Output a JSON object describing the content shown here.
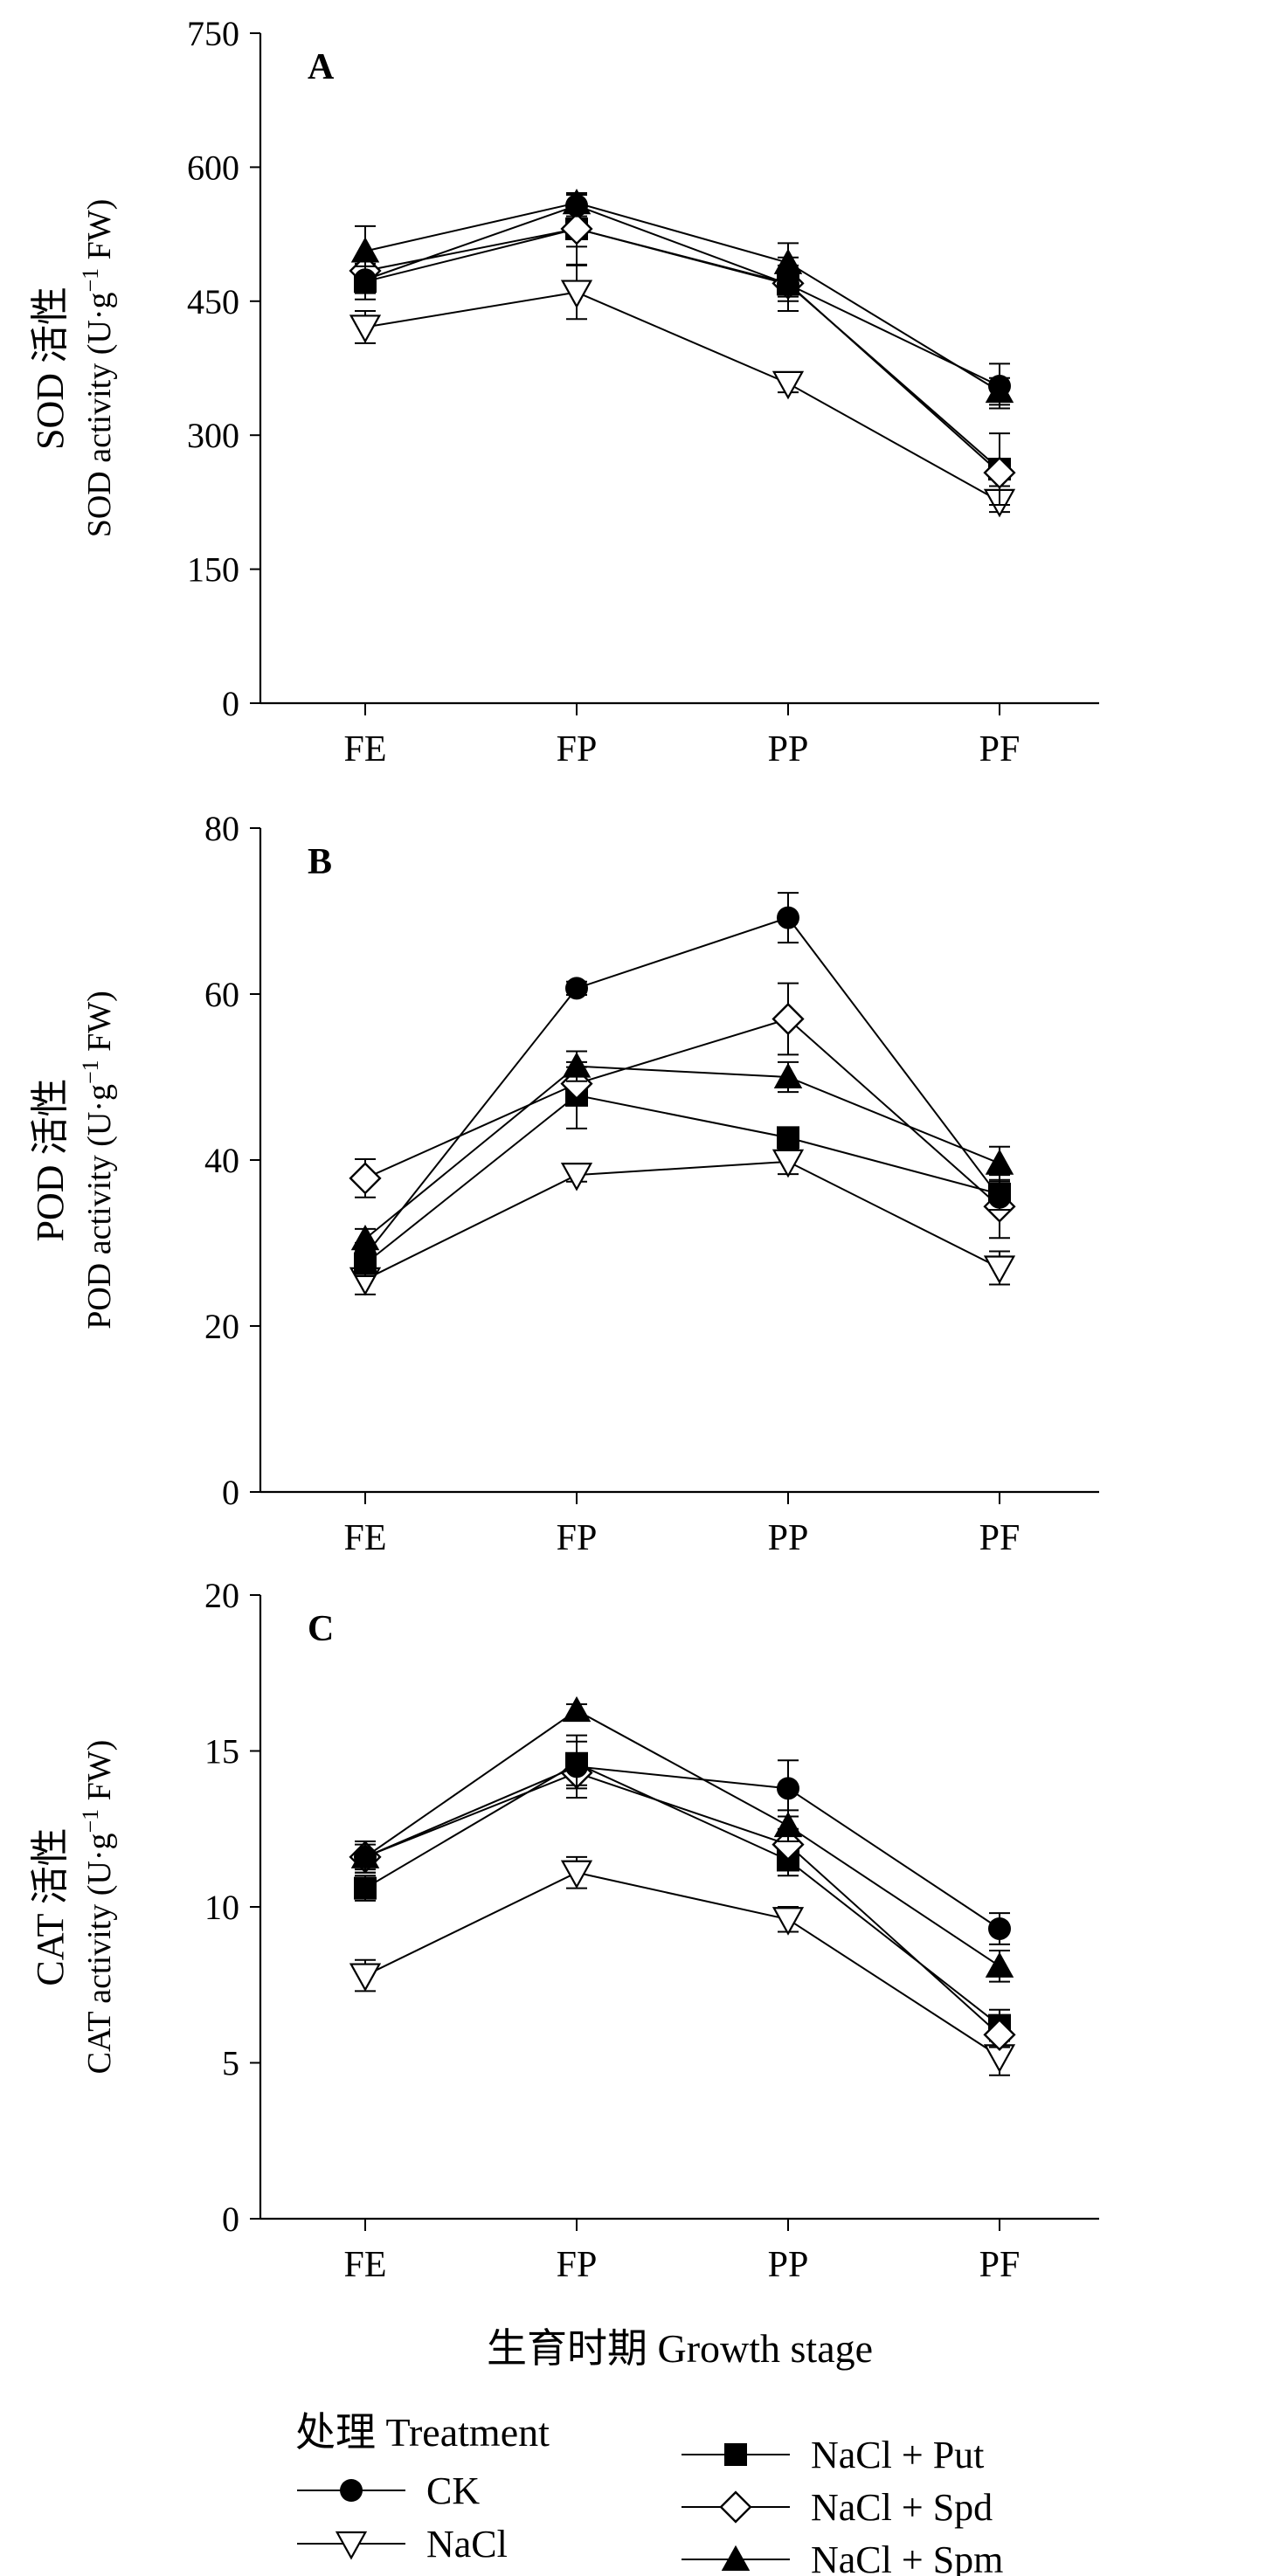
{
  "chart_data": [
    {
      "type": "line",
      "panel_label": "A",
      "ylabel_cn": "SOD 活性",
      "ylabel_en_pre": "SOD activity (U·g",
      "ylabel_en_sup": "−1",
      "ylabel_en_post": " FW)",
      "categories": [
        "FE",
        "FP",
        "PP",
        "PF"
      ],
      "ylim": [
        0,
        750
      ],
      "yticks": [
        0,
        150,
        300,
        450,
        600,
        750
      ],
      "series": [
        {
          "name": "CK",
          "values": [
            474,
            557,
            469,
            355
          ],
          "errors": [
            15,
            12,
            14,
            25
          ]
        },
        {
          "name": "NaCl",
          "values": [
            421,
            460,
            358,
            226
          ],
          "errors": [
            18,
            30,
            10,
            12
          ]
        },
        {
          "name": "NaCl + Put",
          "values": [
            472,
            531,
            469,
            262
          ],
          "errors": [
            20,
            40,
            30,
            40
          ]
        },
        {
          "name": "NaCl + Spd",
          "values": [
            484,
            531,
            470,
            258
          ],
          "errors": [
            15,
            20,
            20,
            15
          ]
        },
        {
          "name": "NaCl + Spm",
          "values": [
            506,
            560,
            493,
            349
          ],
          "errors": [
            28,
            10,
            22,
            15
          ]
        }
      ]
    },
    {
      "type": "line",
      "panel_label": "B",
      "ylabel_cn": "POD 活性",
      "ylabel_en_pre": "POD activity (U·g",
      "ylabel_en_sup": "−1",
      "ylabel_en_post": " FW)",
      "categories": [
        "FE",
        "FP",
        "PP",
        "PF"
      ],
      "ylim": [
        0,
        80
      ],
      "yticks": [
        0,
        20,
        40,
        60,
        80
      ],
      "series": [
        {
          "name": "CK",
          "values": [
            28.5,
            60.7,
            69.2,
            35.5
          ],
          "errors": [
            1.5,
            0.8,
            3.0,
            1.5
          ]
        },
        {
          "name": "NaCl",
          "values": [
            25.6,
            38.2,
            39.8,
            27.0
          ],
          "errors": [
            1.8,
            0.8,
            1.5,
            2.0
          ]
        },
        {
          "name": "NaCl + Put",
          "values": [
            27.5,
            47.8,
            42.7,
            35.9
          ],
          "errors": [
            1.5,
            4.0,
            1.0,
            1.5
          ]
        },
        {
          "name": "NaCl + Spd",
          "values": [
            37.8,
            49.2,
            57.0,
            34.4
          ],
          "errors": [
            2.3,
            2.0,
            4.3,
            3.8
          ]
        },
        {
          "name": "NaCl + Spm",
          "values": [
            30.5,
            51.3,
            50.0,
            39.6
          ],
          "errors": [
            1.2,
            1.8,
            1.8,
            2.0
          ]
        }
      ]
    },
    {
      "type": "line",
      "panel_label": "C",
      "ylabel_cn": "CAT 活性",
      "ylabel_en_pre": "CAT activity (U·g",
      "ylabel_en_sup": "−1",
      "ylabel_en_post": " FW)",
      "xlabel": "生育时期 Growth stage",
      "categories": [
        "FE",
        "FP",
        "PP",
        "PF"
      ],
      "ylim": [
        0,
        20
      ],
      "yticks": [
        0,
        5,
        10,
        15,
        20
      ],
      "series": [
        {
          "name": "CK",
          "values": [
            11.6,
            14.5,
            13.8,
            9.3
          ],
          "errors": [
            0.5,
            1.0,
            0.9,
            0.5
          ]
        },
        {
          "name": "NaCl",
          "values": [
            7.8,
            11.1,
            9.6,
            5.2
          ],
          "errors": [
            0.5,
            0.5,
            0.4,
            0.6
          ]
        },
        {
          "name": "NaCl + Put",
          "values": [
            10.6,
            14.6,
            11.5,
            6.2
          ],
          "errors": [
            0.4,
            0.7,
            0.5,
            0.5
          ]
        },
        {
          "name": "NaCl + Spd",
          "values": [
            11.6,
            14.3,
            12.0,
            5.9
          ],
          "errors": [
            0.5,
            0.5,
            0.5,
            0.4
          ]
        },
        {
          "name": "NaCl + Spm",
          "values": [
            11.6,
            16.3,
            12.6,
            8.1
          ],
          "errors": [
            0.4,
            0.2,
            0.5,
            0.5
          ]
        }
      ]
    }
  ],
  "legend": {
    "title": "处理 Treatment",
    "items": [
      {
        "label": "CK",
        "marker": "circle-filled"
      },
      {
        "label": "NaCl",
        "marker": "triangle-down-open"
      },
      {
        "label": "NaCl + Put",
        "marker": "square-filled"
      },
      {
        "label": "NaCl + Spd",
        "marker": "diamond-open"
      },
      {
        "label": "NaCl + Spm",
        "marker": "triangle-up-filled"
      }
    ]
  }
}
